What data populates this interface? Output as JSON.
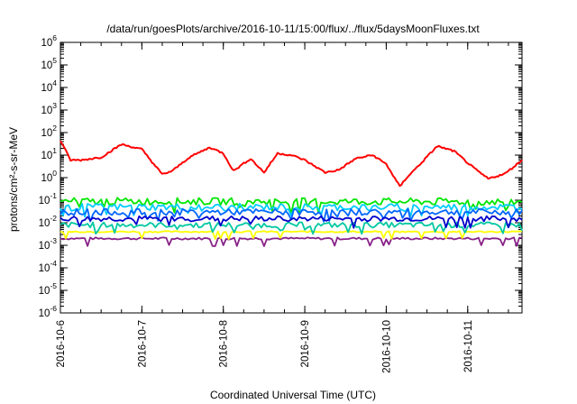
{
  "chart_data": {
    "type": "line",
    "title": "/data/run/goesPlots/archive/2016-10-11/15:00/flux/../flux/5daysMoonFluxes.txt",
    "xlabel": "Coordinated Universal Time (UTC)",
    "ylabel": "protons/cm²-s-sr-MeV",
    "y_scale": "log",
    "ylim": [
      1e-06,
      1000000.0
    ],
    "xlim": [
      "2016-10-06T00:00",
      "2016-10-11T16:00"
    ],
    "x_ticks": [
      "2016-10-6",
      "2016-10-7",
      "2016-10-8",
      "2016-10-9",
      "2016-10-10",
      "2016-10-11"
    ],
    "x_tick_dates": [
      "2016-10-06",
      "2016-10-07",
      "2016-10-08",
      "2016-10-09",
      "2016-10-10",
      "2016-10-11"
    ],
    "y_ticks": [
      {
        "base": "10",
        "exp": "6"
      },
      {
        "base": "10",
        "exp": "5"
      },
      {
        "base": "10",
        "exp": "4"
      },
      {
        "base": "10",
        "exp": "3"
      },
      {
        "base": "10",
        "exp": "2"
      },
      {
        "base": "10",
        "exp": "1"
      },
      {
        "base": "10",
        "exp": "0"
      },
      {
        "base": "10",
        "exp": "-1"
      },
      {
        "base": "10",
        "exp": "-2"
      },
      {
        "base": "10",
        "exp": "-3"
      },
      {
        "base": "10",
        "exp": "-4"
      },
      {
        "base": "10",
        "exp": "-5"
      },
      {
        "base": "10",
        "exp": "-6"
      }
    ],
    "grid": false,
    "legend": "none",
    "series": [
      {
        "color": "#ff0000",
        "x": [
          "2016-10-06T00:00",
          "2016-10-06T03:00",
          "2016-10-06T06:00",
          "2016-10-06T12:00",
          "2016-10-06T18:00",
          "2016-10-07T00:00",
          "2016-10-07T06:00",
          "2016-10-07T09:00",
          "2016-10-07T14:00",
          "2016-10-07T20:00",
          "2016-10-08T00:00",
          "2016-10-08T03:00",
          "2016-10-08T08:00",
          "2016-10-08T12:00",
          "2016-10-08T16:00",
          "2016-10-08T20:00",
          "2016-10-09T00:00",
          "2016-10-09T06:00",
          "2016-10-09T10:00",
          "2016-10-09T15:00",
          "2016-10-09T20:00",
          "2016-10-10T00:00",
          "2016-10-10T04:00",
          "2016-10-10T06:00",
          "2016-10-10T10:00",
          "2016-10-10T15:00",
          "2016-10-10T20:00",
          "2016-10-11T02:00",
          "2016-10-11T06:00",
          "2016-10-11T11:00",
          "2016-10-11T16:00"
        ],
        "values": [
          45,
          6,
          6,
          8,
          30,
          18,
          1.4,
          2,
          8,
          22,
          12,
          2,
          7,
          1.7,
          12,
          10,
          6,
          1.7,
          2.2,
          7,
          10,
          4,
          0.4,
          1,
          4,
          25,
          15,
          2.5,
          0.9,
          1.5,
          6
        ]
      },
      {
        "color": "#00e600",
        "x": [
          "2016-10-06T00:00",
          "2016-10-11T16:00"
        ],
        "values": [
          0.09,
          0.085
        ]
      },
      {
        "color": "#00ccff",
        "x": [
          "2016-10-06T00:00",
          "2016-10-11T16:00"
        ],
        "values": [
          0.05,
          0.05
        ]
      },
      {
        "color": "#0066ff",
        "x": [
          "2016-10-06T00:00",
          "2016-10-11T16:00"
        ],
        "values": [
          0.03,
          0.03
        ]
      },
      {
        "color": "#0000cc",
        "x": [
          "2016-10-06T00:00",
          "2016-10-11T16:00"
        ],
        "values": [
          0.015,
          0.015
        ]
      },
      {
        "color": "#00c8a0",
        "x": [
          "2016-10-06T00:00",
          "2016-10-11T16:00"
        ],
        "values": [
          0.008,
          0.008
        ]
      },
      {
        "color": "#ffff00",
        "x": [
          "2016-10-06T00:00",
          "2016-10-11T16:00"
        ],
        "values": [
          0.004,
          0.004
        ]
      },
      {
        "color": "#882288",
        "x": [
          "2016-10-06T00:00",
          "2016-10-11T16:00"
        ],
        "values": [
          0.002,
          0.002
        ]
      }
    ]
  }
}
